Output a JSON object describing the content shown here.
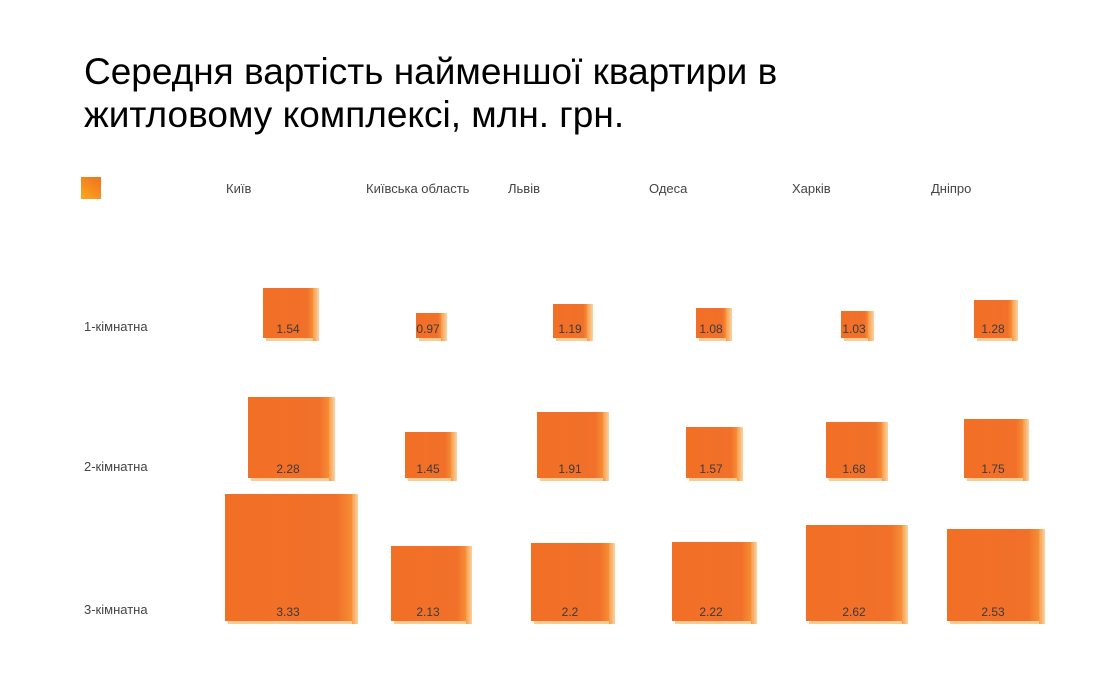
{
  "title": "Середня вартість найменшої квартири в житловому комплексі, млн. грн.",
  "title_lines": [
    "Середня вартість найменшої квартири в",
    "житловому комплексі, млн. грн."
  ],
  "legend": {
    "chip_color_from": "#F17620",
    "chip_color_to": "#FBAA1D"
  },
  "chart_data": {
    "type": "scatter",
    "mark": "sized-square",
    "title": "Середня вартість найменшої квартири в житловому комплексі, млн. грн.",
    "value_unit": "млн. грн.",
    "categories": [
      "Київ",
      "Київська область",
      "Львів",
      "Одеса",
      "Харків",
      "Дніпро"
    ],
    "rows": [
      "1-кімнатна",
      "2-кімнатна",
      "3-кімнатна"
    ],
    "series": [
      {
        "name": "1-кімнатна",
        "values": [
          1.54,
          0.97,
          1.19,
          1.08,
          1.03,
          1.28
        ]
      },
      {
        "name": "2-кімнатна",
        "values": [
          2.28,
          1.45,
          1.91,
          1.57,
          1.68,
          1.75
        ]
      },
      {
        "name": "3-кімнатна",
        "values": [
          3.33,
          2.13,
          2.2,
          2.22,
          2.62,
          2.53
        ]
      }
    ],
    "legend_position": "top-left",
    "grid": false,
    "colors": {
      "square_fill": "#F1702A",
      "square_side_light": "#FBD3A0",
      "square_side_mid": "#F89B4B",
      "square_bottom": "#FACB92",
      "value_text": "#3B3B3B",
      "axis_text": "#444444",
      "title_text": "#000000",
      "background": "#FFFFFF"
    }
  }
}
